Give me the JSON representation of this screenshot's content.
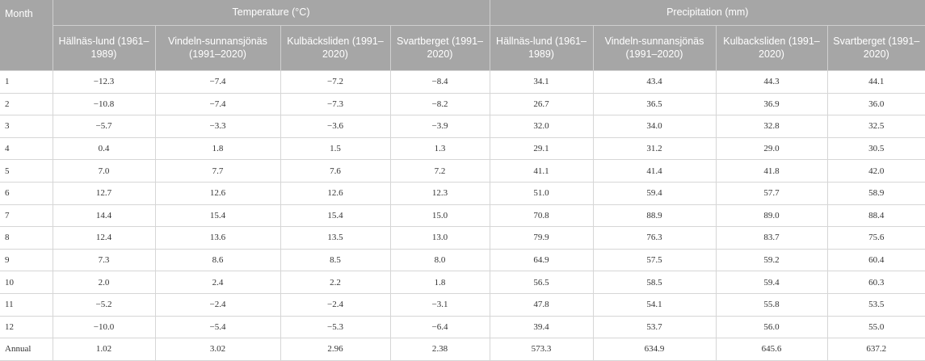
{
  "header": {
    "month": "Month",
    "temperature": "Temperature (°C)",
    "precipitation": "Precipitation (mm)",
    "stations": [
      "Hällnäs-lund (1961–1989)",
      "Vindeln-sunnansjönäs (1991–2020)",
      "Kulbäcksliden (1991–2020)",
      "Svartberget (1991–2020)",
      "Hällnäs-lund (1961–1989)",
      "Vindeln-sunnansjönäs (1991–2020)",
      "Kulbacksliden (1991–2020)",
      "Svartberget (1991–2020)"
    ]
  },
  "rows": [
    [
      "1",
      "−12.3",
      "−7.4",
      "−7.2",
      "−8.4",
      "34.1",
      "43.4",
      "44.3",
      "44.1"
    ],
    [
      "2",
      "−10.8",
      "−7.4",
      "−7.3",
      "−8.2",
      "26.7",
      "36.5",
      "36.9",
      "36.0"
    ],
    [
      "3",
      "−5.7",
      "−3.3",
      "−3.6",
      "−3.9",
      "32.0",
      "34.0",
      "32.8",
      "32.5"
    ],
    [
      "4",
      "0.4",
      "1.8",
      "1.5",
      "1.3",
      "29.1",
      "31.2",
      "29.0",
      "30.5"
    ],
    [
      "5",
      "7.0",
      "7.7",
      "7.6",
      "7.2",
      "41.1",
      "41.4",
      "41.8",
      "42.0"
    ],
    [
      "6",
      "12.7",
      "12.6",
      "12.6",
      "12.3",
      "51.0",
      "59.4",
      "57.7",
      "58.9"
    ],
    [
      "7",
      "14.4",
      "15.4",
      "15.4",
      "15.0",
      "70.8",
      "88.9",
      "89.0",
      "88.4"
    ],
    [
      "8",
      "12.4",
      "13.6",
      "13.5",
      "13.0",
      "79.9",
      "76.3",
      "83.7",
      "75.6"
    ],
    [
      "9",
      "7.3",
      "8.6",
      "8.5",
      "8.0",
      "64.9",
      "57.5",
      "59.2",
      "60.4"
    ],
    [
      "10",
      "2.0",
      "2.4",
      "2.2",
      "1.8",
      "56.5",
      "58.5",
      "59.4",
      "60.3"
    ],
    [
      "11",
      "−5.2",
      "−2.4",
      "−2.4",
      "−3.1",
      "47.8",
      "54.1",
      "55.8",
      "53.5"
    ],
    [
      "12",
      "−10.0",
      "−5.4",
      "−5.3",
      "−6.4",
      "39.4",
      "53.7",
      "56.0",
      "55.0"
    ],
    [
      "Annual",
      "1.02",
      "3.02",
      "2.96",
      "2.38",
      "573.3",
      "634.9",
      "645.6",
      "637.2"
    ]
  ]
}
